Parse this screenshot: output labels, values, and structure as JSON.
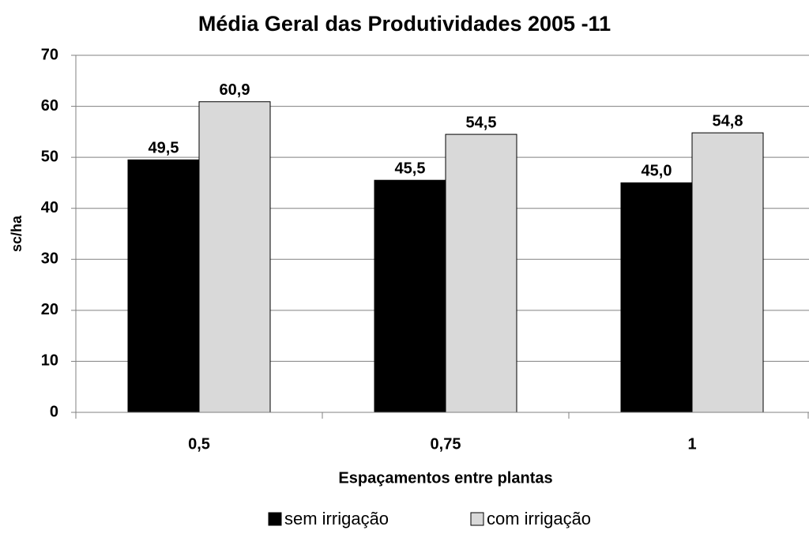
{
  "chart_data": {
    "type": "bar",
    "title": "Média Geral das Produtividades 2005 -11",
    "x_label": "Espaçamentos entre plantas",
    "y_label": "sc/ha",
    "categories": [
      "0,5",
      "0,75",
      "1"
    ],
    "series": [
      {
        "name": "sem irrigação",
        "color": "#000000",
        "values": [
          49.5,
          45.5,
          45.0
        ],
        "value_labels": [
          "49,5",
          "45,5",
          "45,0"
        ]
      },
      {
        "name": "com irrigação",
        "color": "#d9d9d9",
        "values": [
          60.9,
          54.5,
          54.8
        ],
        "value_labels": [
          "60,9",
          "54,5",
          "54,8"
        ]
      }
    ],
    "ylim": [
      0,
      70
    ],
    "yticks": [
      0,
      10,
      20,
      30,
      40,
      50,
      60,
      70
    ],
    "grid": true
  }
}
